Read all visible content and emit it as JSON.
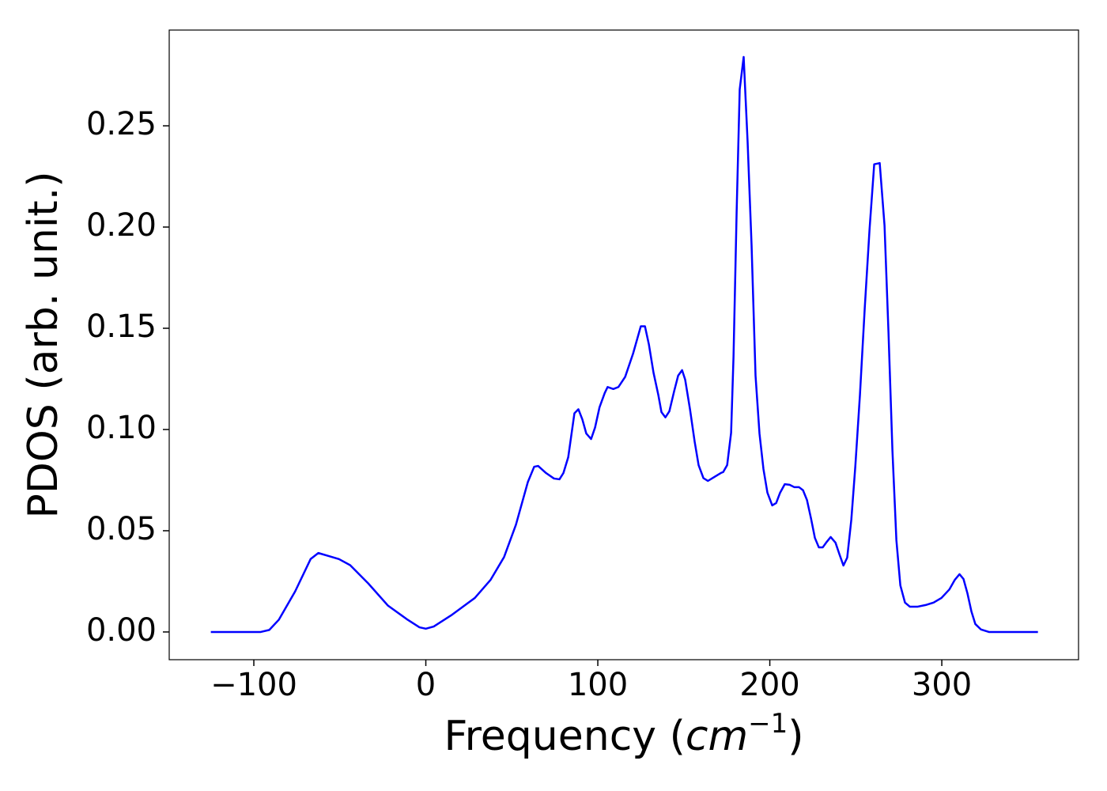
{
  "chart_data": {
    "type": "line",
    "y_label": "PDOS (arb. unit.)",
    "x_label": [
      "Frequency (",
      "cm",
      "−1",
      ")"
    ],
    "x": [
      -125,
      -96,
      -91,
      -85.5,
      -76,
      -67,
      -62.5,
      -56.5,
      -50.5,
      -44,
      -33.5,
      -22,
      -10.5,
      -3.7,
      0,
      4.6,
      14.7,
      28.5,
      37.7,
      45.5,
      52.4,
      59.3,
      63,
      65.3,
      69.9,
      74.5,
      77.7,
      80,
      82.8,
      86.4,
      88.7,
      91,
      93.3,
      96.1,
      98.4,
      101,
      104,
      105.7,
      109,
      112,
      115.9,
      120.5,
      125,
      127.4,
      129.7,
      132.4,
      135.2,
      137,
      139.3,
      141.6,
      144.4,
      146.7,
      149,
      150.8,
      153.6,
      156.3,
      158.6,
      161.4,
      164,
      167.8,
      171.5,
      172.9,
      175.2,
      177.5,
      178.9,
      180.7,
      182.5,
      184.8,
      187.1,
      189.4,
      191.7,
      194,
      196.3,
      198.6,
      201.4,
      203.7,
      206,
      208.7,
      211.5,
      214.3,
      217,
      219.3,
      221.6,
      224,
      226.2,
      228.5,
      230.8,
      233.1,
      235.4,
      238.2,
      240.5,
      242.8,
      245,
      247.4,
      249.7,
      252.4,
      255.2,
      258,
      260.7,
      263.9,
      266.7,
      269,
      271.3,
      273.6,
      275.9,
      278.6,
      281.4,
      286,
      290.6,
      295.2,
      299.8,
      304.4,
      307.6,
      310.3,
      312.6,
      314.9,
      317.2,
      319.5,
      322.8,
      327.4,
      355.9
    ],
    "series": [
      {
        "color": "#0000ff",
        "values": [
          0,
          0,
          0.001,
          0.006,
          0.02,
          0.036,
          0.039,
          0.0375,
          0.036,
          0.033,
          0.024,
          0.013,
          0.006,
          0.0023,
          0.0016,
          0.0027,
          0.0082,
          0.0168,
          0.0258,
          0.037,
          0.053,
          0.074,
          0.0816,
          0.082,
          0.0785,
          0.0758,
          0.0754,
          0.0785,
          0.0863,
          0.108,
          0.11,
          0.105,
          0.098,
          0.0953,
          0.101,
          0.111,
          0.118,
          0.121,
          0.12,
          0.121,
          0.126,
          0.1375,
          0.151,
          0.151,
          0.142,
          0.128,
          0.117,
          0.1086,
          0.106,
          0.109,
          0.119,
          0.1266,
          0.1293,
          0.1246,
          0.11,
          0.094,
          0.0824,
          0.076,
          0.0746,
          0.0766,
          0.0785,
          0.079,
          0.0824,
          0.0984,
          0.136,
          0.207,
          0.268,
          0.284,
          0.242,
          0.191,
          0.1266,
          0.098,
          0.0805,
          0.0688,
          0.0625,
          0.0637,
          0.0688,
          0.073,
          0.0727,
          0.0715,
          0.0715,
          0.07,
          0.0652,
          0.0559,
          0.0465,
          0.0418,
          0.0418,
          0.0445,
          0.0469,
          0.0441,
          0.0383,
          0.0328,
          0.0367,
          0.0555,
          0.0816,
          0.117,
          0.16,
          0.199,
          0.231,
          0.2316,
          0.2008,
          0.148,
          0.0895,
          0.0453,
          0.023,
          0.0145,
          0.0125,
          0.0125,
          0.0133,
          0.0145,
          0.0168,
          0.021,
          0.0258,
          0.0285,
          0.0262,
          0.0191,
          0.0102,
          0.0039,
          0.0012,
          0,
          0
        ]
      }
    ],
    "xlim": [
      -149.2,
      379.5
    ],
    "ylim": [
      -0.0137,
      0.2973
    ],
    "xticks": [
      {
        "value": -100,
        "label": "−100"
      },
      0,
      100,
      200,
      300
    ],
    "yticks": [
      {
        "value": 0,
        "label": "0.00"
      },
      {
        "value": 0.05,
        "label": "0.05"
      },
      {
        "value": 0.1,
        "label": "0.10"
      },
      {
        "value": 0.15,
        "label": "0.15"
      },
      {
        "value": 0.2,
        "label": "0.20"
      },
      {
        "value": 0.25,
        "label": "0.25"
      }
    ],
    "grid": false
  }
}
